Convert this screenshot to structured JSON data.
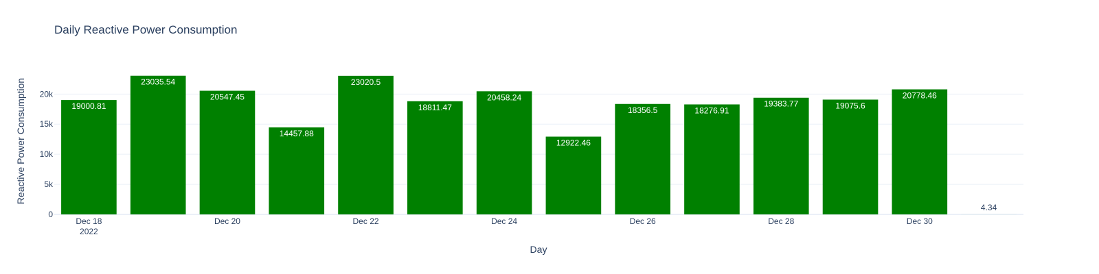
{
  "chart_data": {
    "type": "bar",
    "title": "Daily Reactive Power Consumption",
    "xlabel": "Day",
    "ylabel": "Reactive Power Consumption",
    "categories": [
      "2022-12-18",
      "2022-12-19",
      "2022-12-20",
      "2022-12-21",
      "2022-12-22",
      "2022-12-23",
      "2022-12-24",
      "2022-12-25",
      "2022-12-26",
      "2022-12-27",
      "2022-12-28",
      "2022-12-29",
      "2022-12-30",
      "2022-12-31"
    ],
    "x_tick_labels": [
      {
        "category": "2022-12-18",
        "label": "Dec 18",
        "sublabel": "2022"
      },
      {
        "category": "2022-12-20",
        "label": "Dec 20",
        "sublabel": ""
      },
      {
        "category": "2022-12-22",
        "label": "Dec 22",
        "sublabel": ""
      },
      {
        "category": "2022-12-24",
        "label": "Dec 24",
        "sublabel": ""
      },
      {
        "category": "2022-12-26",
        "label": "Dec 26",
        "sublabel": ""
      },
      {
        "category": "2022-12-28",
        "label": "Dec 28",
        "sublabel": ""
      },
      {
        "category": "2022-12-30",
        "label": "Dec 30",
        "sublabel": ""
      }
    ],
    "values": [
      19000.81,
      23035.54,
      20547.45,
      14457.88,
      23020.5,
      18811.47,
      20458.24,
      12922.46,
      18356.5,
      18276.91,
      19383.77,
      19075.6,
      20778.46,
      4.34
    ],
    "data_labels": [
      "19000.81",
      "23035.54",
      "20547.45",
      "14457.88",
      "23020.5",
      "18811.47",
      "20458.24",
      "12922.46",
      "18356.5",
      "18276.91",
      "19383.77",
      "19075.6",
      "20778.46",
      "4.34"
    ],
    "y_ticks": [
      0,
      5000,
      10000,
      15000,
      20000
    ],
    "y_tick_labels": [
      "0",
      "5k",
      "10k",
      "15k",
      "20k"
    ],
    "ylim": [
      0,
      24248
    ],
    "bar_color": "#008000",
    "grid": true,
    "legend": "none"
  }
}
